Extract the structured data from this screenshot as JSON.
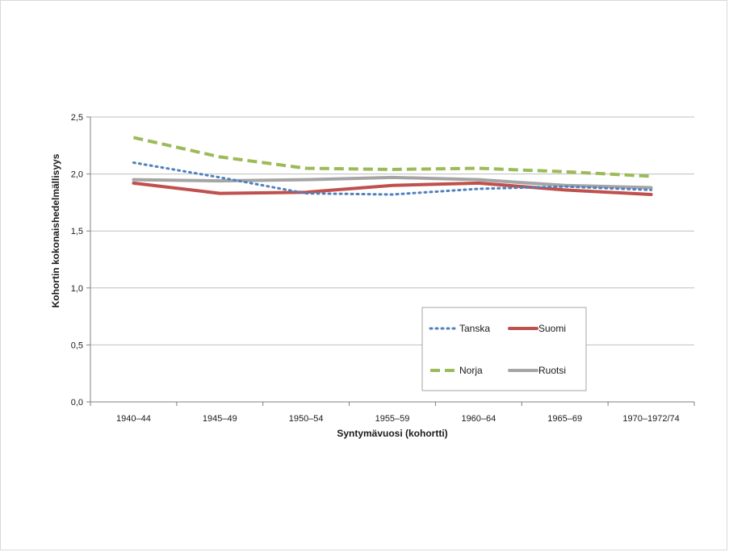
{
  "chart_data": {
    "type": "line",
    "title": "",
    "xlabel": "Syntymävuosi (kohortti)",
    "ylabel": "Kohortin kokonaishedelmällisyys",
    "categories": [
      "1940–44",
      "1945–49",
      "1950–54",
      "1955–59",
      "1960–64",
      "1965–69",
      "1970–1972/74"
    ],
    "ylim": [
      0,
      2.5
    ],
    "yticks": [
      "0,0",
      "0,5",
      "1,0",
      "1,5",
      "2,0",
      "2,5"
    ],
    "grid": true,
    "legend_position": "inside lower right",
    "series": [
      {
        "name": "Tanska",
        "values": [
          2.1,
          1.97,
          1.83,
          1.82,
          1.87,
          1.89,
          1.86
        ],
        "color": "#4f81bd",
        "style": "dotted"
      },
      {
        "name": "Suomi",
        "values": [
          1.92,
          1.83,
          1.84,
          1.9,
          1.92,
          1.86,
          1.82
        ],
        "color": "#c0504d",
        "style": "solid"
      },
      {
        "name": "Norja",
        "values": [
          2.32,
          2.15,
          2.05,
          2.04,
          2.05,
          2.02,
          1.98
        ],
        "color": "#9bbb59",
        "style": "dashed"
      },
      {
        "name": "Ruotsi",
        "values": [
          1.95,
          1.94,
          1.95,
          1.97,
          1.95,
          1.9,
          1.88
        ],
        "color": "#a5a5a5",
        "style": "solid"
      }
    ]
  }
}
